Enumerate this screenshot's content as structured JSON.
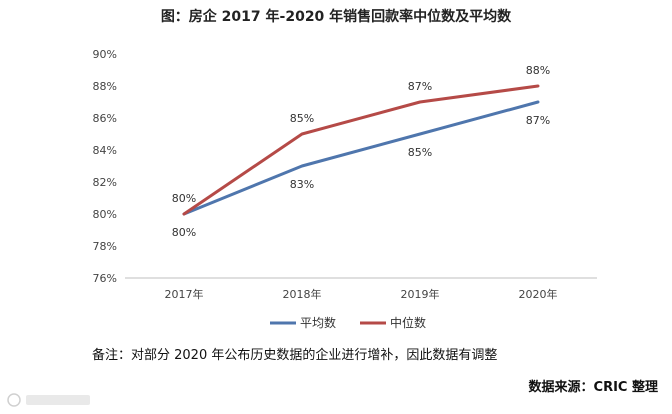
{
  "header": {
    "title": "图：房企 2017 年-2020 年销售回款率中位数及平均数"
  },
  "chart_data": {
    "type": "line",
    "title": "图：房企 2017 年-2020 年销售回款率中位数及平均数",
    "categories": [
      "2017年",
      "2018年",
      "2019年",
      "2020年"
    ],
    "y_ticks": [
      "76%",
      "78%",
      "80%",
      "82%",
      "84%",
      "86%",
      "88%",
      "90%"
    ],
    "ylim": [
      76,
      90
    ],
    "grid": false,
    "legend_position": "bottom",
    "series": [
      {
        "name": "平均数",
        "values": [
          80,
          83,
          85,
          87
        ],
        "labels": [
          "80%",
          "83%",
          "85%",
          "87%"
        ],
        "color": "#4f76ad"
      },
      {
        "name": "中位数",
        "values": [
          80,
          85,
          87,
          88
        ],
        "labels": [
          "80%",
          "85%",
          "87%",
          "88%"
        ],
        "color": "#b54a47"
      }
    ]
  },
  "footer": {
    "note": "备注：对部分 2020 年公布历史数据的企业进行增补，因此数据有调整",
    "source": "数据来源：CRIC 整理"
  },
  "colors": {
    "axis": "#bfbfbf",
    "text": "#444444"
  }
}
